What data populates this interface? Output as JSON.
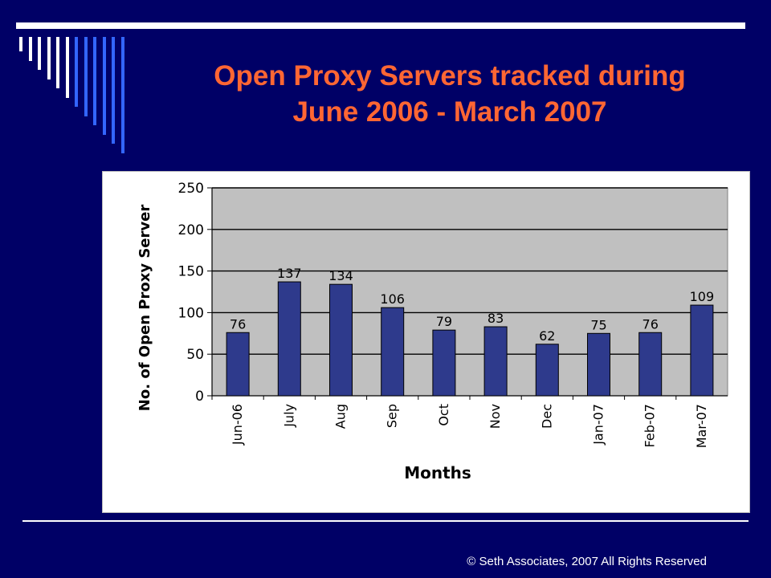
{
  "slide": {
    "title_line1": "Open Proxy Servers tracked during",
    "title_line2": "June 2006 - March 2007",
    "footer": "© Seth Associates, 2007 All Rights Reserved"
  },
  "colors": {
    "background": "#000066",
    "title": "#ff6633",
    "stripe_light": "#ffffff",
    "stripe_blue": "#3366ff",
    "bar": "#2e3a8c",
    "plot_area": "#c0c0c0"
  },
  "chart_data": {
    "type": "bar",
    "title": "",
    "categories": [
      "Jun-06",
      "July",
      "Aug",
      "Sep",
      "Oct",
      "Nov",
      "Dec",
      "Jan-07",
      "Feb-07",
      "Mar-07"
    ],
    "values": [
      76,
      137,
      134,
      106,
      79,
      83,
      62,
      75,
      76,
      109
    ],
    "xlabel": "Months",
    "ylabel": "No. of Open Proxy Server",
    "ylim": [
      0,
      250
    ],
    "yticks": [
      0,
      50,
      100,
      150,
      200,
      250
    ],
    "grid": true,
    "data_labels": true
  }
}
